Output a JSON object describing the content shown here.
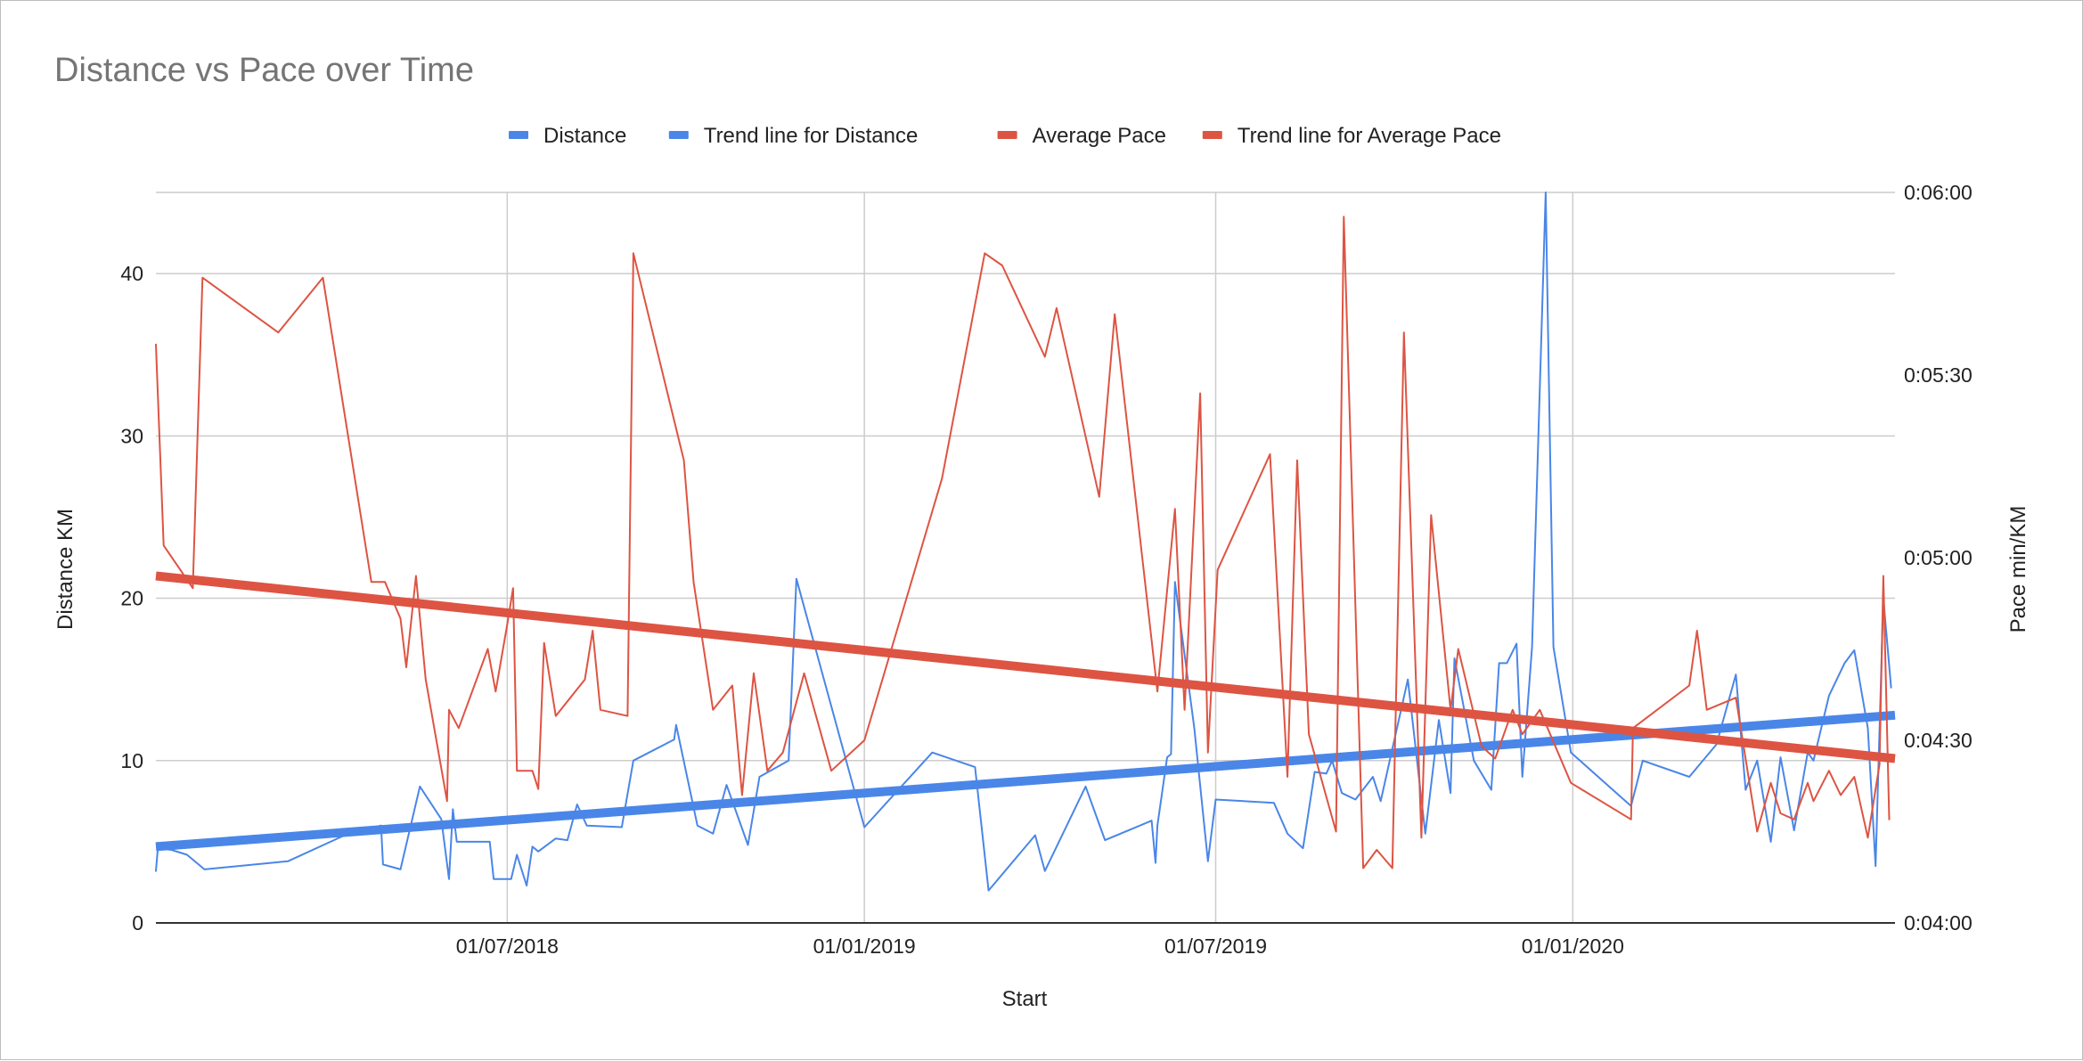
{
  "chart_data": {
    "type": "line",
    "title": "Distance vs Pace over Time",
    "xlabel": "Start",
    "ylabel": "Distance KM",
    "y2label": "Pace min/KM",
    "legend_position": "top",
    "grid": true,
    "xlim": [
      "2018-01-01",
      "2020-06-15"
    ],
    "ylim": [
      0,
      45
    ],
    "y2lim": [
      "0:04:00",
      "0:06:00"
    ],
    "x_ticks": [
      {
        "date": "2018-07-01",
        "label": "01/07/2018"
      },
      {
        "date": "2019-01-01",
        "label": "01/01/2019"
      },
      {
        "date": "2019-07-01",
        "label": "01/07/2019"
      },
      {
        "date": "2020-01-01",
        "label": "01/01/2020"
      }
    ],
    "y_ticks": [
      0,
      10,
      20,
      30,
      40
    ],
    "y2_ticks": [
      "0:04:00",
      "0:04:30",
      "0:05:00",
      "0:05:30",
      "0:06:00"
    ],
    "colors": {
      "distance": "#4a86e8",
      "pace": "#dd5443"
    },
    "series": [
      {
        "name": "Distance",
        "axis": "left",
        "color": "#4a86e8",
        "points": [
          [
            "2018-01-01",
            3.2
          ],
          [
            "2018-01-02",
            4.6
          ],
          [
            "2018-01-09",
            4.5
          ],
          [
            "2018-01-17",
            4.2
          ],
          [
            "2018-01-26",
            3.3
          ],
          [
            "2018-03-10",
            3.8
          ],
          [
            "2018-04-10",
            5.5
          ],
          [
            "2018-04-20",
            5.8
          ],
          [
            "2018-04-27",
            6.0
          ],
          [
            "2018-04-28",
            3.6
          ],
          [
            "2018-05-07",
            3.3
          ],
          [
            "2018-05-17",
            8.4
          ],
          [
            "2018-05-28",
            6.4
          ],
          [
            "2018-06-01",
            2.7
          ],
          [
            "2018-06-03",
            7.0
          ],
          [
            "2018-06-05",
            5.0
          ],
          [
            "2018-06-22",
            5.0
          ],
          [
            "2018-06-24",
            2.7
          ],
          [
            "2018-07-03",
            2.7
          ],
          [
            "2018-07-06",
            4.2
          ],
          [
            "2018-07-11",
            2.3
          ],
          [
            "2018-07-14",
            4.7
          ],
          [
            "2018-07-17",
            4.4
          ],
          [
            "2018-07-26",
            5.2
          ],
          [
            "2018-08-01",
            5.1
          ],
          [
            "2018-08-06",
            7.3
          ],
          [
            "2018-08-11",
            6.0
          ],
          [
            "2018-08-29",
            5.9
          ],
          [
            "2018-09-04",
            10.0
          ],
          [
            "2018-09-25",
            11.3
          ],
          [
            "2018-09-26",
            12.2
          ],
          [
            "2018-10-07",
            6.0
          ],
          [
            "2018-10-15",
            5.5
          ],
          [
            "2018-10-22",
            8.5
          ],
          [
            "2018-11-02",
            4.8
          ],
          [
            "2018-11-08",
            9.0
          ],
          [
            "2018-11-23",
            10.0
          ],
          [
            "2018-11-27",
            21.2
          ],
          [
            "2019-01-01",
            5.9
          ],
          [
            "2019-02-05",
            10.5
          ],
          [
            "2019-02-27",
            9.6
          ],
          [
            "2019-03-06",
            2.0
          ],
          [
            "2019-03-30",
            5.4
          ],
          [
            "2019-04-04",
            3.2
          ],
          [
            "2019-04-25",
            8.4
          ],
          [
            "2019-05-05",
            5.1
          ],
          [
            "2019-05-29",
            6.3
          ],
          [
            "2019-05-31",
            3.7
          ],
          [
            "2019-06-01",
            6.0
          ],
          [
            "2019-06-06",
            10.2
          ],
          [
            "2019-06-08",
            10.4
          ],
          [
            "2019-06-10",
            21.0
          ],
          [
            "2019-06-20",
            12.0
          ],
          [
            "2019-06-27",
            3.8
          ],
          [
            "2019-07-01",
            7.6
          ],
          [
            "2019-07-31",
            7.4
          ],
          [
            "2019-08-07",
            5.5
          ],
          [
            "2019-08-15",
            4.6
          ],
          [
            "2019-08-21",
            9.3
          ],
          [
            "2019-08-27",
            9.2
          ],
          [
            "2019-08-30",
            10.0
          ],
          [
            "2019-09-04",
            8.0
          ],
          [
            "2019-09-11",
            7.6
          ],
          [
            "2019-09-20",
            9.0
          ],
          [
            "2019-09-24",
            7.5
          ],
          [
            "2019-10-08",
            15.0
          ],
          [
            "2019-10-17",
            5.5
          ],
          [
            "2019-10-24",
            12.5
          ],
          [
            "2019-10-30",
            8.0
          ],
          [
            "2019-11-01",
            16.3
          ],
          [
            "2019-11-11",
            10.0
          ],
          [
            "2019-11-20",
            8.2
          ],
          [
            "2019-11-24",
            16.0
          ],
          [
            "2019-11-28",
            16.0
          ],
          [
            "2019-12-03",
            17.2
          ],
          [
            "2019-12-06",
            9.0
          ],
          [
            "2019-12-11",
            17.0
          ],
          [
            "2019-12-18",
            45.0
          ],
          [
            "2019-12-22",
            17.0
          ],
          [
            "2019-12-31",
            10.5
          ],
          [
            "2020-01-31",
            7.2
          ],
          [
            "2020-02-06",
            10.0
          ],
          [
            "2020-03-01",
            9.0
          ],
          [
            "2020-03-15",
            11.0
          ],
          [
            "2020-03-25",
            15.3
          ],
          [
            "2020-03-30",
            8.2
          ],
          [
            "2020-04-05",
            10.0
          ],
          [
            "2020-04-12",
            5.0
          ],
          [
            "2020-04-17",
            10.2
          ],
          [
            "2020-04-24",
            5.7
          ],
          [
            "2020-05-01",
            10.5
          ],
          [
            "2020-05-04",
            10.0
          ],
          [
            "2020-05-12",
            14.0
          ],
          [
            "2020-05-20",
            16.0
          ],
          [
            "2020-05-25",
            16.8
          ],
          [
            "2020-06-01",
            12.0
          ],
          [
            "2020-06-05",
            3.5
          ],
          [
            "2020-06-09",
            20.0
          ],
          [
            "2020-06-13",
            14.5
          ]
        ]
      },
      {
        "name": "Trend line for Distance",
        "axis": "left",
        "color": "#4a86e8",
        "trend": true,
        "points": [
          [
            "2018-01-01",
            4.7
          ],
          [
            "2020-06-15",
            12.8
          ]
        ]
      },
      {
        "name": "Average Pace",
        "axis": "right",
        "color": "#dd5443",
        "points": [
          [
            "2018-01-01",
            "0:05:35"
          ],
          [
            "2018-01-05",
            "0:05:02"
          ],
          [
            "2018-01-20",
            "0:04:55"
          ],
          [
            "2018-01-25",
            "0:05:46"
          ],
          [
            "2018-03-05",
            "0:05:37"
          ],
          [
            "2018-03-28",
            "0:05:46"
          ],
          [
            "2018-04-22",
            "0:04:56"
          ],
          [
            "2018-04-29",
            "0:04:56"
          ],
          [
            "2018-05-07",
            "0:04:50"
          ],
          [
            "2018-05-10",
            "0:04:42"
          ],
          [
            "2018-05-15",
            "0:04:57"
          ],
          [
            "2018-05-20",
            "0:04:40"
          ],
          [
            "2018-05-31",
            "0:04:20"
          ],
          [
            "2018-06-01",
            "0:04:35"
          ],
          [
            "2018-06-06",
            "0:04:32"
          ],
          [
            "2018-06-21",
            "0:04:45"
          ],
          [
            "2018-06-25",
            "0:04:38"
          ],
          [
            "2018-07-01",
            "0:04:49"
          ],
          [
            "2018-07-04",
            "0:04:55"
          ],
          [
            "2018-07-06",
            "0:04:25"
          ],
          [
            "2018-07-14",
            "0:04:25"
          ],
          [
            "2018-07-17",
            "0:04:22"
          ],
          [
            "2018-07-20",
            "0:04:46"
          ],
          [
            "2018-07-26",
            "0:04:34"
          ],
          [
            "2018-08-10",
            "0:04:40"
          ],
          [
            "2018-08-14",
            "0:04:48"
          ],
          [
            "2018-08-18",
            "0:04:35"
          ],
          [
            "2018-09-01",
            "0:04:34"
          ],
          [
            "2018-09-04",
            "0:05:50"
          ],
          [
            "2018-09-30",
            "0:05:16"
          ],
          [
            "2018-10-05",
            "0:04:56"
          ],
          [
            "2018-10-15",
            "0:04:35"
          ],
          [
            "2018-10-25",
            "0:04:39"
          ],
          [
            "2018-10-30",
            "0:04:21"
          ],
          [
            "2018-11-05",
            "0:04:41"
          ],
          [
            "2018-11-12",
            "0:04:25"
          ],
          [
            "2018-11-20",
            "0:04:28"
          ],
          [
            "2018-12-01",
            "0:04:41"
          ],
          [
            "2018-12-15",
            "0:04:25"
          ],
          [
            "2019-01-01",
            "0:04:30"
          ],
          [
            "2019-02-10",
            "0:05:13"
          ],
          [
            "2019-03-04",
            "0:05:50"
          ],
          [
            "2019-03-13",
            "0:05:48"
          ],
          [
            "2019-04-04",
            "0:05:33"
          ],
          [
            "2019-04-10",
            "0:05:41"
          ],
          [
            "2019-05-02",
            "0:05:10"
          ],
          [
            "2019-05-10",
            "0:05:40"
          ],
          [
            "2019-06-01",
            "0:04:38"
          ],
          [
            "2019-06-10",
            "0:05:08"
          ],
          [
            "2019-06-15",
            "0:04:35"
          ],
          [
            "2019-06-23",
            "0:05:27"
          ],
          [
            "2019-06-27",
            "0:04:28"
          ],
          [
            "2019-07-02",
            "0:04:58"
          ],
          [
            "2019-07-29",
            "0:05:17"
          ],
          [
            "2019-08-07",
            "0:04:24"
          ],
          [
            "2019-08-12",
            "0:05:16"
          ],
          [
            "2019-08-18",
            "0:04:31"
          ],
          [
            "2019-09-01",
            "0:04:15"
          ],
          [
            "2019-09-05",
            "0:05:56"
          ],
          [
            "2019-09-15",
            "0:04:09"
          ],
          [
            "2019-09-22",
            "0:04:12"
          ],
          [
            "2019-09-30",
            "0:04:09"
          ],
          [
            "2019-10-06",
            "0:05:37"
          ],
          [
            "2019-10-15",
            "0:04:14"
          ],
          [
            "2019-10-20",
            "0:05:07"
          ],
          [
            "2019-10-30",
            "0:04:35"
          ],
          [
            "2019-11-03",
            "0:04:45"
          ],
          [
            "2019-11-15",
            "0:04:29"
          ],
          [
            "2019-11-22",
            "0:04:27"
          ],
          [
            "2019-12-01",
            "0:04:35"
          ],
          [
            "2019-12-06",
            "0:04:31"
          ],
          [
            "2019-12-15",
            "0:04:35"
          ],
          [
            "2019-12-31",
            "0:04:23"
          ],
          [
            "2020-01-31",
            "0:04:17"
          ],
          [
            "2020-02-01",
            "0:04:32"
          ],
          [
            "2020-03-01",
            "0:04:39"
          ],
          [
            "2020-03-05",
            "0:04:48"
          ],
          [
            "2020-03-10",
            "0:04:35"
          ],
          [
            "2020-03-25",
            "0:04:37"
          ],
          [
            "2020-04-05",
            "0:04:15"
          ],
          [
            "2020-04-12",
            "0:04:23"
          ],
          [
            "2020-04-17",
            "0:04:18"
          ],
          [
            "2020-04-24",
            "0:04:17"
          ],
          [
            "2020-05-01",
            "0:04:23"
          ],
          [
            "2020-05-04",
            "0:04:20"
          ],
          [
            "2020-05-12",
            "0:04:25"
          ],
          [
            "2020-05-18",
            "0:04:21"
          ],
          [
            "2020-05-25",
            "0:04:24"
          ],
          [
            "2020-06-01",
            "0:04:14"
          ],
          [
            "2020-06-07",
            "0:04:26"
          ],
          [
            "2020-06-09",
            "0:04:57"
          ],
          [
            "2020-06-12",
            "0:04:17"
          ]
        ]
      },
      {
        "name": "Trend line for Average Pace",
        "axis": "right",
        "color": "#dd5443",
        "trend": true,
        "points": [
          [
            "2018-01-01",
            "0:04:57"
          ],
          [
            "2020-06-15",
            "0:04:27"
          ]
        ]
      }
    ]
  }
}
